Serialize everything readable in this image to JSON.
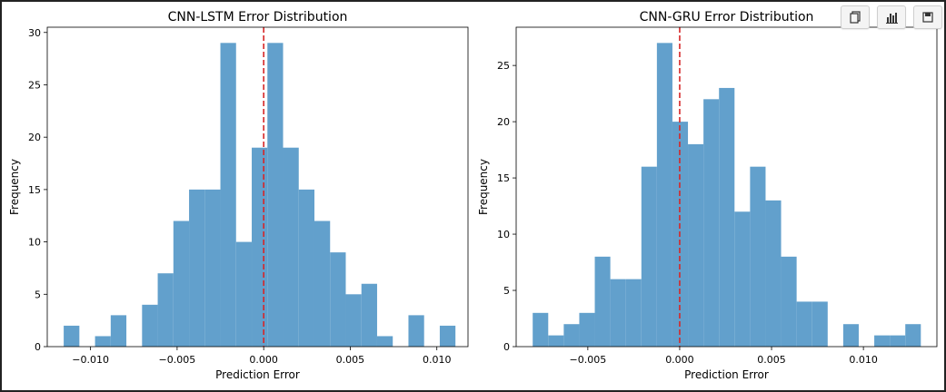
{
  "toolbar": [
    {
      "name": "copy-icon"
    },
    {
      "name": "bar-chart-icon"
    },
    {
      "name": "save-icon"
    }
  ],
  "colors": {
    "bar": "#62a0cc",
    "zero_line": "#d62728",
    "axis": "#000000"
  },
  "chart_data": [
    {
      "type": "bar",
      "title": "CNN-LSTM Error Distribution",
      "xlabel": "Prediction Error",
      "ylabel": "Frequency",
      "xlim": [
        -0.0125,
        0.0118
      ],
      "ylim": [
        0,
        30.5
      ],
      "bin_start": -0.01155,
      "bin_width": 0.000905,
      "counts": [
        2,
        0,
        1,
        3,
        0,
        4,
        7,
        12,
        15,
        15,
        29,
        10,
        19,
        29,
        19,
        15,
        12,
        9,
        5,
        6,
        1,
        0,
        3,
        0,
        2
      ],
      "xticks": [
        -0.01,
        -0.005,
        0.0,
        0.005,
        0.01
      ],
      "xtick_labels": [
        "−0.010",
        "−0.005",
        "0.000",
        "0.005",
        "0.010"
      ],
      "yticks": [
        0,
        5,
        10,
        15,
        20,
        25,
        30
      ],
      "ytick_labels": [
        "0",
        "5",
        "10",
        "15",
        "20",
        "25",
        "30"
      ],
      "vline": 0
    },
    {
      "type": "bar",
      "title": "CNN-GRU Error Distribution",
      "xlabel": "Prediction Error",
      "ylabel": "Frequency",
      "xlim": [
        -0.0089,
        0.014
      ],
      "ylim": [
        0,
        28.4
      ],
      "bin_start": -0.008,
      "bin_width": 0.000845,
      "counts": [
        3,
        1,
        2,
        3,
        8,
        6,
        6,
        16,
        27,
        20,
        18,
        22,
        23,
        12,
        16,
        13,
        8,
        4,
        4,
        0,
        2,
        0,
        1,
        1,
        2
      ],
      "xticks": [
        -0.005,
        0.0,
        0.005,
        0.01
      ],
      "xtick_labels": [
        "−0.005",
        "0.000",
        "0.005",
        "0.010"
      ],
      "yticks": [
        0,
        5,
        10,
        15,
        20,
        25
      ],
      "ytick_labels": [
        "0",
        "5",
        "10",
        "15",
        "20",
        "25"
      ],
      "vline": 0
    }
  ]
}
